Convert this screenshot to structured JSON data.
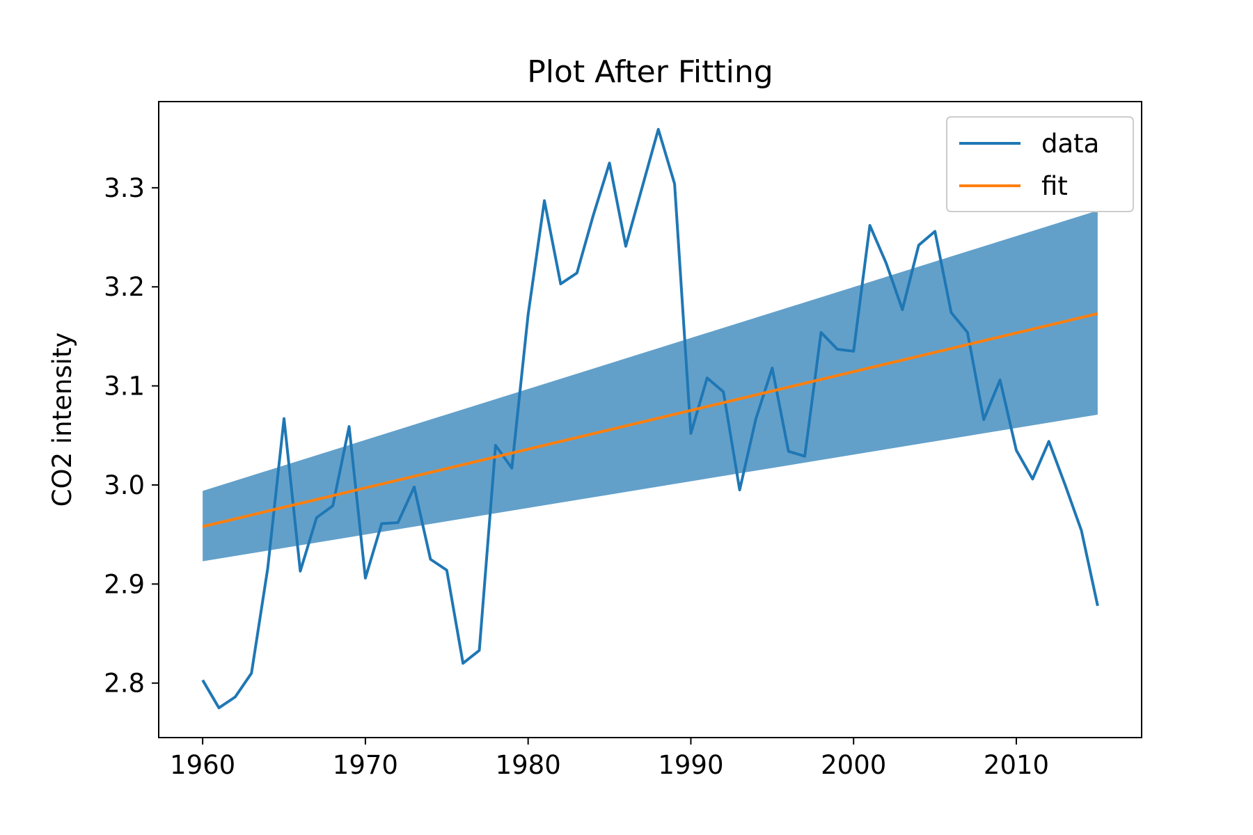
{
  "chart_data": {
    "type": "line",
    "title": "Plot After Fitting",
    "xlabel": "",
    "ylabel": "CO2 intensity",
    "xlim": [
      1957.3,
      2017.7
    ],
    "ylim": [
      2.745,
      3.387
    ],
    "x_ticks": [
      1960,
      1970,
      1980,
      1990,
      2000,
      2010
    ],
    "x_tick_labels": [
      "1960",
      "1970",
      "1980",
      "1990",
      "2000",
      "2010"
    ],
    "y_ticks": [
      2.8,
      2.9,
      3.0,
      3.1,
      3.2,
      3.3
    ],
    "y_tick_labels": [
      "2.8",
      "2.9",
      "3.0",
      "3.1",
      "3.2",
      "3.3"
    ],
    "grid": false,
    "legend": {
      "position": "top-right",
      "entries": [
        "data",
        "fit"
      ]
    },
    "colors": {
      "data": "#1f77b4",
      "fit": "#ff7f0e",
      "band": "#1f77b4"
    },
    "x": [
      1960,
      1961,
      1962,
      1963,
      1964,
      1965,
      1966,
      1967,
      1968,
      1969,
      1970,
      1971,
      1972,
      1973,
      1974,
      1975,
      1976,
      1977,
      1978,
      1979,
      1980,
      1981,
      1982,
      1983,
      1984,
      1985,
      1986,
      1987,
      1988,
      1989,
      1990,
      1991,
      1992,
      1993,
      1994,
      1995,
      1996,
      1997,
      1998,
      1999,
      2000,
      2001,
      2002,
      2003,
      2004,
      2005,
      2006,
      2007,
      2008,
      2009,
      2010,
      2011,
      2012,
      2013,
      2014,
      2015
    ],
    "series": [
      {
        "name": "data",
        "values": [
          2.803,
          2.775,
          2.786,
          2.81,
          2.916,
          3.067,
          2.913,
          2.967,
          2.979,
          3.059,
          2.906,
          2.961,
          2.962,
          2.998,
          2.925,
          2.914,
          2.82,
          2.833,
          3.04,
          3.017,
          3.172,
          3.287,
          3.203,
          3.214,
          3.272,
          3.325,
          3.241,
          3.3,
          3.359,
          3.304,
          3.052,
          3.108,
          3.094,
          2.995,
          3.067,
          3.118,
          3.034,
          3.029,
          3.154,
          3.137,
          3.135,
          3.262,
          3.224,
          3.177,
          3.242,
          3.256,
          3.174,
          3.154,
          3.066,
          3.106,
          3.035,
          3.006,
          3.044,
          3.0,
          2.954,
          2.878
        ]
      },
      {
        "name": "fit",
        "x": [
          1960,
          2015
        ],
        "values": [
          2.958,
          3.173
        ]
      }
    ],
    "band": {
      "x": [
        1960,
        2015
      ],
      "lower": [
        2.923,
        3.071
      ],
      "upper": [
        2.994,
        3.277
      ]
    }
  }
}
